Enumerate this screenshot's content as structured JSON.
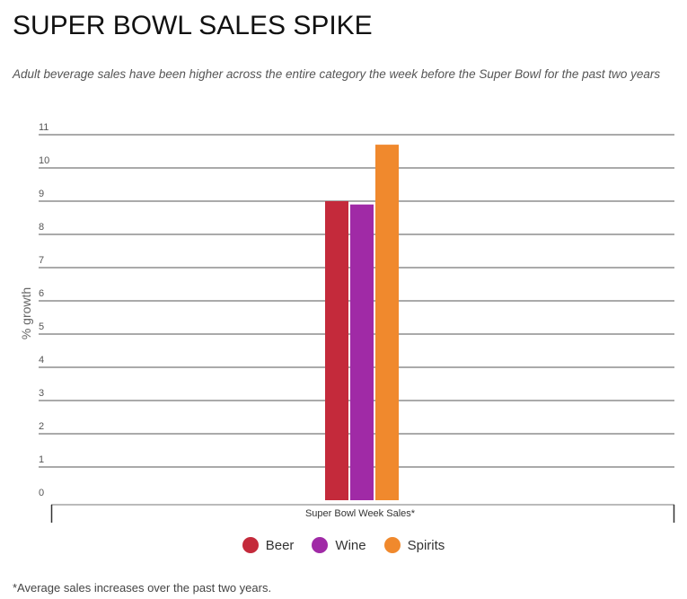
{
  "title": "SUPER BOWL SALES SPIKE",
  "subtitle": "Adult beverage sales have been higher across the entire category the week before the Super Bowl for the past two years",
  "footnote": "*Average sales increases over the past two years.",
  "chart_data": {
    "type": "bar",
    "title": "SUPER BOWL SALES SPIKE",
    "categories": [
      "Super Bowl Week Sales*"
    ],
    "series": [
      {
        "name": "Beer",
        "values": [
          9.0
        ],
        "color": "#c42a3b"
      },
      {
        "name": "Wine",
        "values": [
          8.9
        ],
        "color": "#a02aa6"
      },
      {
        "name": "Spirits",
        "values": [
          10.7
        ],
        "color": "#f0892d"
      }
    ],
    "xlabel": "Super Bowl Week Sales*",
    "ylabel": "% growth",
    "ylim": [
      0,
      11
    ],
    "yticks": [
      "0",
      "1",
      "2",
      "3",
      "4",
      "5",
      "6",
      "7",
      "8",
      "9",
      "10",
      "11"
    ],
    "grid": true,
    "legend_position": "bottom-center"
  }
}
